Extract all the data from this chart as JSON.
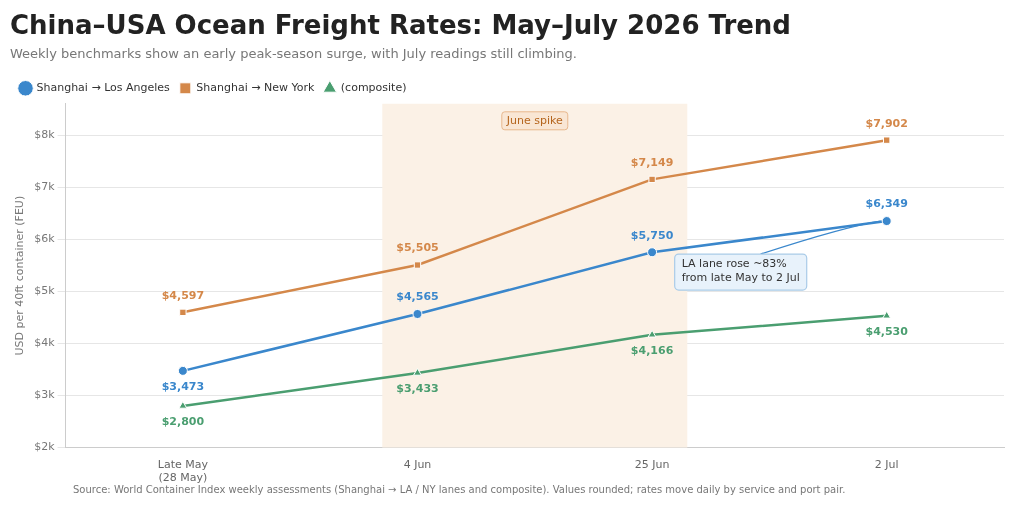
{
  "chart_data": {
    "type": "line",
    "title": "China–USA Ocean Freight Rates: May–July 2026 Trend",
    "subtitle": "Weekly benchmarks show an early peak-season surge, with July readings still climbing.",
    "ylabel": "USD per 40ft container (FEU)",
    "categories": [
      "Late May\n(28 May)",
      "4 Jun",
      "25 Jun",
      "2 Jul"
    ],
    "series": [
      {
        "name": "Shanghai → Los Angeles",
        "color": "#3a87cc",
        "marker": "circle",
        "values": [
          3473,
          4565,
          5750,
          6349
        ],
        "value_labels": [
          "$3,473",
          "$4,565",
          "$5,750",
          "$6,349"
        ]
      },
      {
        "name": "Shanghai → New York",
        "color": "#d4884a",
        "marker": "square",
        "values": [
          4597,
          5505,
          7149,
          7902
        ],
        "value_labels": [
          "$4,597",
          "$5,505",
          "$7,149",
          "$7,902"
        ]
      },
      {
        "name": "(composite)",
        "color": "#4a9e70",
        "marker": "triangle",
        "values": [
          2800,
          3433,
          4166,
          4530
        ],
        "value_labels": [
          "$2,800",
          "$3,433",
          "$4,166",
          "$4,530"
        ]
      }
    ],
    "ylim": [
      2000,
      8600
    ],
    "yticks": [
      {
        "value": 2000,
        "label": "$2k"
      },
      {
        "value": 3000,
        "label": "$3k"
      },
      {
        "value": 4000,
        "label": "$4k"
      },
      {
        "value": 5000,
        "label": "$5k"
      },
      {
        "value": 6000,
        "label": "$6k"
      },
      {
        "value": 7000,
        "label": "$7k"
      },
      {
        "value": 8000,
        "label": "$8k"
      }
    ],
    "grid": "y",
    "legend": "top left",
    "line_style": "solid",
    "bands": [
      {
        "axis": "x",
        "from": "4 Jun",
        "to": "25 Jun",
        "label": "June spike",
        "color": "#fbf1e6"
      }
    ],
    "annotations": [
      {
        "text": "LA lane rose ~83%\nfrom late May to 2 Jul",
        "x": "2 Jul",
        "y": 6349
      },
      "Source: World Container Index weekly assessments (Shanghai → LA / NY lanes and composite). Values rounded; rates move daily by service and port pair."
    ]
  }
}
